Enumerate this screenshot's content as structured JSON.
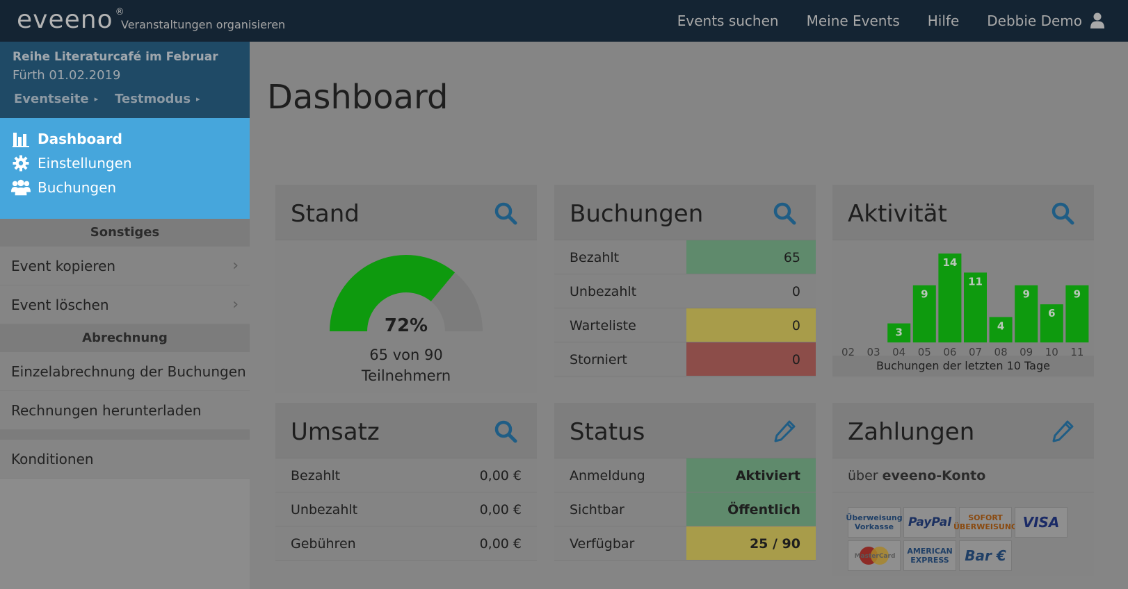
{
  "app": {
    "logo_text": "eveeno",
    "logo_mark": "®",
    "tagline": "Veranstaltungen organisieren"
  },
  "topnav": {
    "items": [
      "Events suchen",
      "Meine Events",
      "Hilfe",
      "Debbie Demo"
    ],
    "user_icon": "user-icon"
  },
  "event": {
    "title": "Reihe Literaturcafé im Februar",
    "date": "Fürth 01.02.2019",
    "links": [
      "Eventseite",
      "Testmodus"
    ]
  },
  "nav": {
    "items": [
      {
        "label": "Dashboard",
        "icon": "bar-chart-icon",
        "active": true
      },
      {
        "label": "Einstellungen",
        "icon": "gear-icon",
        "active": false
      },
      {
        "label": "Buchungen",
        "icon": "users-icon",
        "active": false
      }
    ]
  },
  "sidebar": {
    "section_sonstiges": "Sonstiges",
    "event_kopieren": "Event kopieren",
    "event_loeschen": "Event löschen",
    "section_abrechnung": "Abrechnung",
    "einzelabrechnung": "Einzelabrechnung der Buchungen",
    "rechnungen": "Rechnungen herunterladen",
    "konditionen": "Konditionen"
  },
  "page": {
    "title": "Dashboard"
  },
  "stand": {
    "title": "Stand",
    "percent": 72,
    "percent_label": "72%",
    "line1": "65 von 90",
    "line2": "Teilnehmern"
  },
  "buchungen": {
    "title": "Buchungen",
    "rows": [
      {
        "label": "Bezahlt",
        "value": "65",
        "color": "#5f8a6c"
      },
      {
        "label": "Unbezahlt",
        "value": "0",
        "color": "#848484"
      },
      {
        "label": "Warteliste",
        "value": "0",
        "color": "#a89c4a"
      },
      {
        "label": "Storniert",
        "value": "0",
        "color": "#8c4d49"
      }
    ]
  },
  "aktivitaet": {
    "title": "Aktivität",
    "caption": "Buchungen der letzten 10 Tage"
  },
  "chart_data": {
    "type": "bar",
    "categories": [
      "02",
      "03",
      "04",
      "05",
      "06",
      "07",
      "08",
      "09",
      "10",
      "11"
    ],
    "values": [
      0,
      0,
      3,
      9,
      14,
      11,
      4,
      9,
      6,
      9
    ],
    "title": "",
    "xlabel": "Buchungen der letzten 10 Tage",
    "ylabel": "",
    "ylim": [
      0,
      14
    ],
    "bar_color": "#0e9a0e",
    "grid": false
  },
  "umsatz": {
    "title": "Umsatz",
    "rows": [
      {
        "label": "Bezahlt",
        "value": "0,00 €"
      },
      {
        "label": "Unbezahlt",
        "value": "0,00 €"
      },
      {
        "label": "Gebühren",
        "value": "0,00 €"
      }
    ]
  },
  "status": {
    "title": "Status",
    "rows": [
      {
        "label": "Anmeldung",
        "value": "Aktiviert",
        "color": "#5f8a6c"
      },
      {
        "label": "Sichtbar",
        "value": "Öffentlich",
        "color": "#5f8a6c"
      },
      {
        "label": "Verfügbar",
        "value": "25 / 90",
        "color": "#a89c4a"
      }
    ]
  },
  "zahlungen": {
    "title": "Zahlungen",
    "prefix": "über",
    "account": "eveeno-Konto",
    "methods": [
      "Überweisung Vorkasse",
      "PayPal",
      "SOFORT ÜBERWEISUNG",
      "VISA",
      "MasterCard",
      "AMERICAN EXPRESS",
      "Bar €"
    ]
  },
  "colors": {
    "topbar": "#142433",
    "active_nav": "#46a6dc",
    "accent_icon": "#1f5d85",
    "gauge_fill": "#0e9a0e"
  }
}
